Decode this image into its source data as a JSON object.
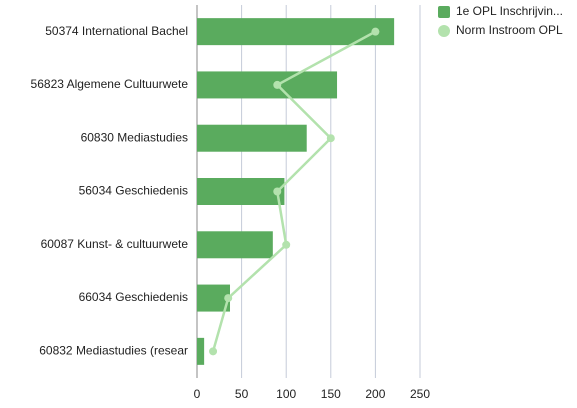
{
  "chart_data": {
    "type": "bar",
    "orientation": "horizontal",
    "categories": [
      "50374 International Bachel",
      "56823 Algemene Cultuurwete",
      "60830 Mediastudies",
      "56034 Geschiedenis",
      "60087 Kunst- & cultuurwete",
      "66034 Geschiedenis",
      "60832 Mediastudies (resear"
    ],
    "series": [
      {
        "name": "1e OPL Inschrijvin...",
        "color": "#5aab5e",
        "mark": "bar",
        "values": [
          221,
          157,
          123,
          98,
          85,
          37,
          8
        ]
      },
      {
        "name": "Norm Instroom OPL",
        "color": "#b3e2ad",
        "mark": "line",
        "values": [
          200,
          90,
          150,
          90,
          100,
          35,
          18
        ]
      }
    ],
    "xlim": [
      0,
      250
    ],
    "xticks": [
      0,
      50,
      100,
      150,
      200,
      250
    ],
    "grid": true,
    "legend": "top-right"
  }
}
